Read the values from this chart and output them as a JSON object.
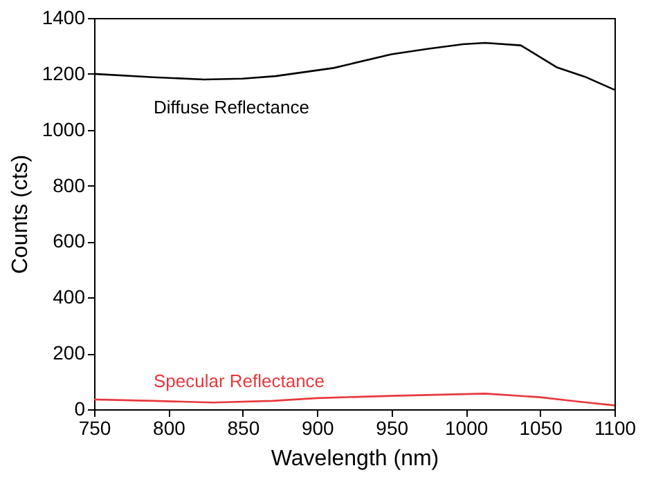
{
  "chart_data": {
    "type": "line",
    "xlabel": "Wavelength (nm)",
    "ylabel": "Counts (cts)",
    "xlim": [
      750,
      1100
    ],
    "ylim": [
      0,
      1400
    ],
    "xticks": [
      750,
      800,
      850,
      900,
      950,
      1000,
      1050,
      1100
    ],
    "yticks": [
      0,
      200,
      400,
      600,
      800,
      1000,
      1200,
      1400
    ],
    "grid": false,
    "legend": false,
    "marker": "none",
    "line_style": "solid",
    "series": [
      {
        "name": "Diffuse Reflectance",
        "color": "#000000",
        "x": [
          750,
          790,
          824,
          850,
          872,
          911,
          950,
          975,
          998,
          1013,
          1037,
          1061,
          1080,
          1100
        ],
        "values": [
          1200,
          1188,
          1180,
          1183,
          1192,
          1221,
          1270,
          1290,
          1306,
          1311,
          1302,
          1224,
          1190,
          1143
        ]
      },
      {
        "name": "Specular Reflectance",
        "color": "#e8383d",
        "x": [
          750,
          790,
          830,
          870,
          900,
          950,
          1013,
          1050,
          1075,
          1100
        ],
        "values": [
          35,
          30,
          24,
          30,
          40,
          48,
          56,
          43,
          28,
          14
        ]
      }
    ]
  }
}
